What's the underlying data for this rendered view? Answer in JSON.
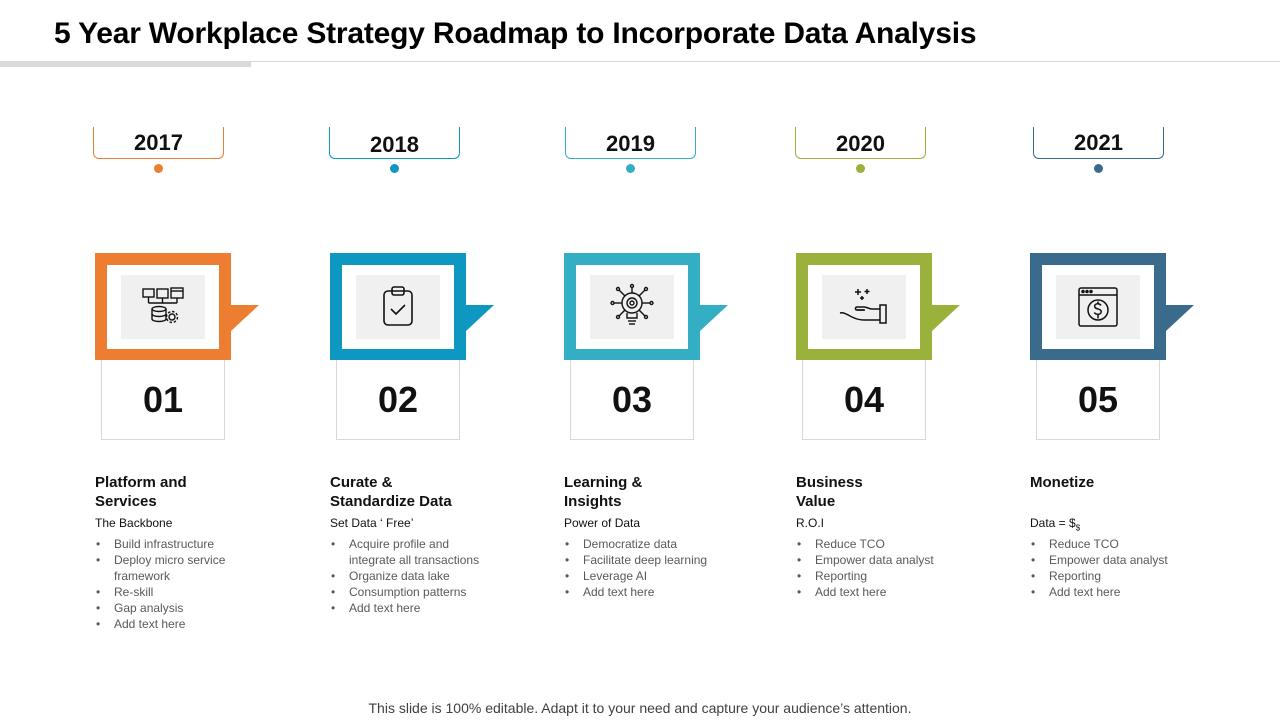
{
  "title": "5 Year Workplace Strategy Roadmap to Incorporate Data Analysis",
  "footer": "This slide is 100% editable. Adapt it to your need and capture your audience’s attention.",
  "steps": [
    {
      "year": "2017",
      "number": "01",
      "color": "#ED7D31",
      "icon": "data-infrastructure-icon",
      "heading": "Platform and Services",
      "subheading": "The Backbone",
      "bullets": [
        "Build infrastructure",
        "Deploy micro service framework",
        "Re-skill",
        "Gap analysis",
        "Add text here"
      ]
    },
    {
      "year": "2018",
      "number": "02",
      "color": "#0E97C1",
      "icon": "clipboard-check-icon",
      "heading": "Curate & Standardize Data",
      "subheading": "Set Data ‘ Free’",
      "bullets": [
        "Acquire profile and integrate all transactions",
        "Organize data lake",
        "Consumption  patterns",
        "Add text here"
      ]
    },
    {
      "year": "2019",
      "number": "03",
      "color": "#33AEC4",
      "icon": "lightbulb-network-icon",
      "heading": "Learning & Insights",
      "subheading": "Power of Data",
      "bullets": [
        "Democratize data",
        "Facilitate deep learning",
        "Leverage  AI",
        "Add text here"
      ]
    },
    {
      "year": "2020",
      "number": "04",
      "color": "#9AB13B",
      "icon": "hand-sparkle-icon",
      "heading": "Business Value",
      "subheading": "R.O.I",
      "bullets": [
        "Reduce TCO",
        "Empower data analyst",
        "Reporting",
        "Add text here"
      ]
    },
    {
      "year": "2021",
      "number": "05",
      "color": "#3B6B8C",
      "icon": "browser-dollar-icon",
      "heading": "Monetize",
      "subheading": "Data = $",
      "subheading_sub": "$",
      "bullets": [
        "Reduce TCO",
        "Empower data analyst",
        "Reporting",
        "Add text here"
      ]
    }
  ]
}
